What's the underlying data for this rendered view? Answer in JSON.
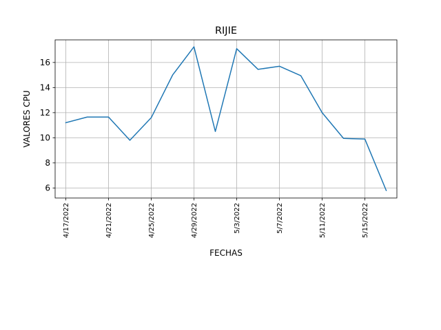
{
  "chart_data": {
    "type": "line",
    "title": "RIJIE",
    "xlabel": "FECHAS",
    "ylabel": "VALORES CPU",
    "x": [
      "4/17/2022",
      "4/19/2022",
      "4/21/2022",
      "4/23/2022",
      "4/25/2022",
      "4/27/2022",
      "4/29/2022",
      "5/1/2022",
      "5/3/2022",
      "5/5/2022",
      "5/7/2022",
      "5/9/2022",
      "5/11/2022",
      "5/13/2022",
      "5/15/2022",
      "5/17/2022"
    ],
    "series": [
      {
        "values": [
          11.2,
          11.65,
          11.65,
          9.8,
          11.6,
          15.0,
          17.25,
          10.5,
          17.1,
          15.45,
          15.7,
          14.95,
          12.0,
          9.95,
          9.9,
          5.8
        ],
        "color": "#1f77b4"
      }
    ],
    "xticks": [
      "4/17/2022",
      "4/21/2022",
      "4/25/2022",
      "4/29/2022",
      "5/3/2022",
      "5/7/2022",
      "5/11/2022",
      "5/15/2022"
    ],
    "yticks": [
      6,
      8,
      10,
      12,
      14,
      16
    ],
    "xlim": [
      "4/16/2022",
      "5/18/2022"
    ],
    "ylim": [
      5.2,
      17.8
    ],
    "grid": true,
    "legend": "none"
  }
}
